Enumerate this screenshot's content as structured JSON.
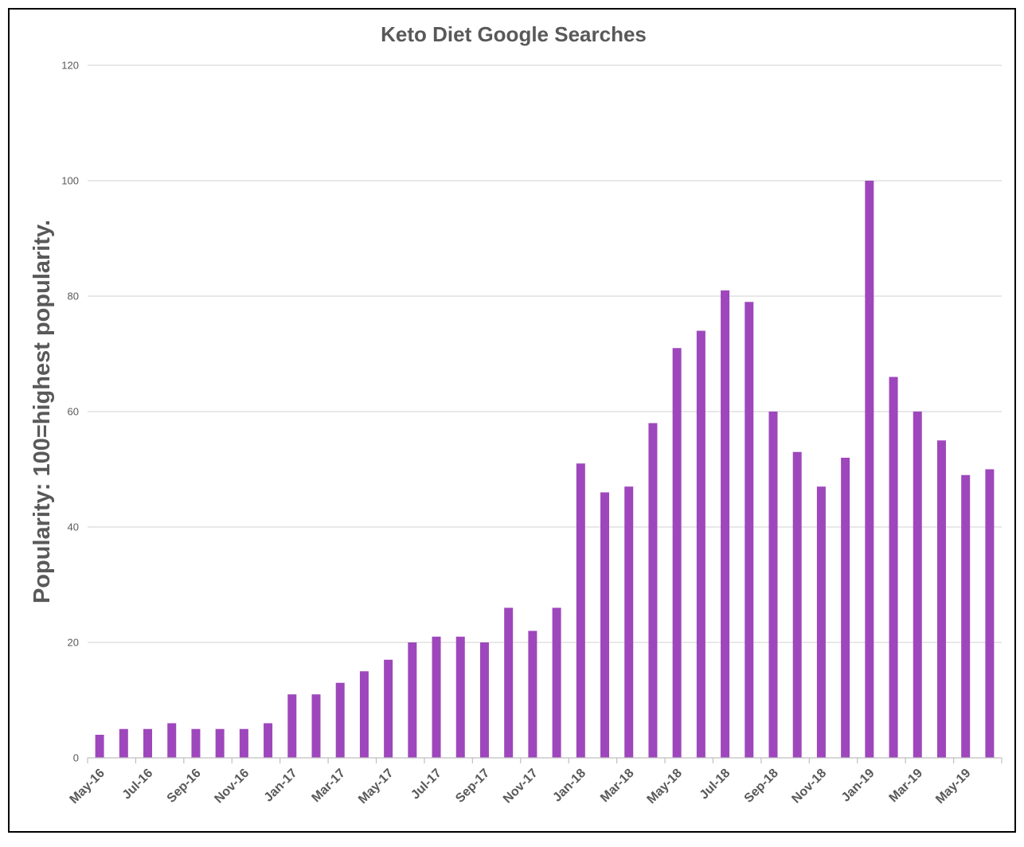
{
  "chart_data": {
    "type": "bar",
    "title": "Keto Diet Google Searches",
    "xlabel": "",
    "ylabel": "Popularity: 100=highest popularity.",
    "ylim": [
      0,
      120
    ],
    "yticks": [
      0,
      20,
      40,
      60,
      80,
      100,
      120
    ],
    "grid": true,
    "legend": "none",
    "bar_color": "#9e47bc",
    "categories": [
      "May-16",
      "Jun-16",
      "Jul-16",
      "Aug-16",
      "Sep-16",
      "Oct-16",
      "Nov-16",
      "Dec-16",
      "Jan-17",
      "Feb-17",
      "Mar-17",
      "Apr-17",
      "May-17",
      "Jun-17",
      "Jul-17",
      "Aug-17",
      "Sep-17",
      "Oct-17",
      "Nov-17",
      "Dec-17",
      "Jan-18",
      "Feb-18",
      "Mar-18",
      "Apr-18",
      "May-18",
      "Jun-18",
      "Jul-18",
      "Aug-18",
      "Sep-18",
      "Oct-18",
      "Nov-18",
      "Dec-18",
      "Jan-19",
      "Feb-19",
      "Mar-19",
      "Apr-19",
      "May-19",
      "Jun-19"
    ],
    "values": [
      4,
      5,
      5,
      6,
      5,
      5,
      5,
      6,
      11,
      11,
      13,
      15,
      17,
      20,
      21,
      21,
      20,
      26,
      22,
      26,
      51,
      46,
      47,
      58,
      71,
      74,
      81,
      79,
      60,
      53,
      47,
      52,
      100,
      66,
      60,
      55,
      49,
      50
    ],
    "xtick_labels": [
      "May-16",
      "Jul-16",
      "Sep-16",
      "Nov-16",
      "Jan-17",
      "Mar-17",
      "May-17",
      "Jul-17",
      "Sep-17",
      "Nov-17",
      "Jan-18",
      "Mar-18",
      "May-18",
      "Jul-18",
      "Sep-18",
      "Nov-18",
      "Jan-19",
      "Mar-19",
      "May-19"
    ]
  }
}
